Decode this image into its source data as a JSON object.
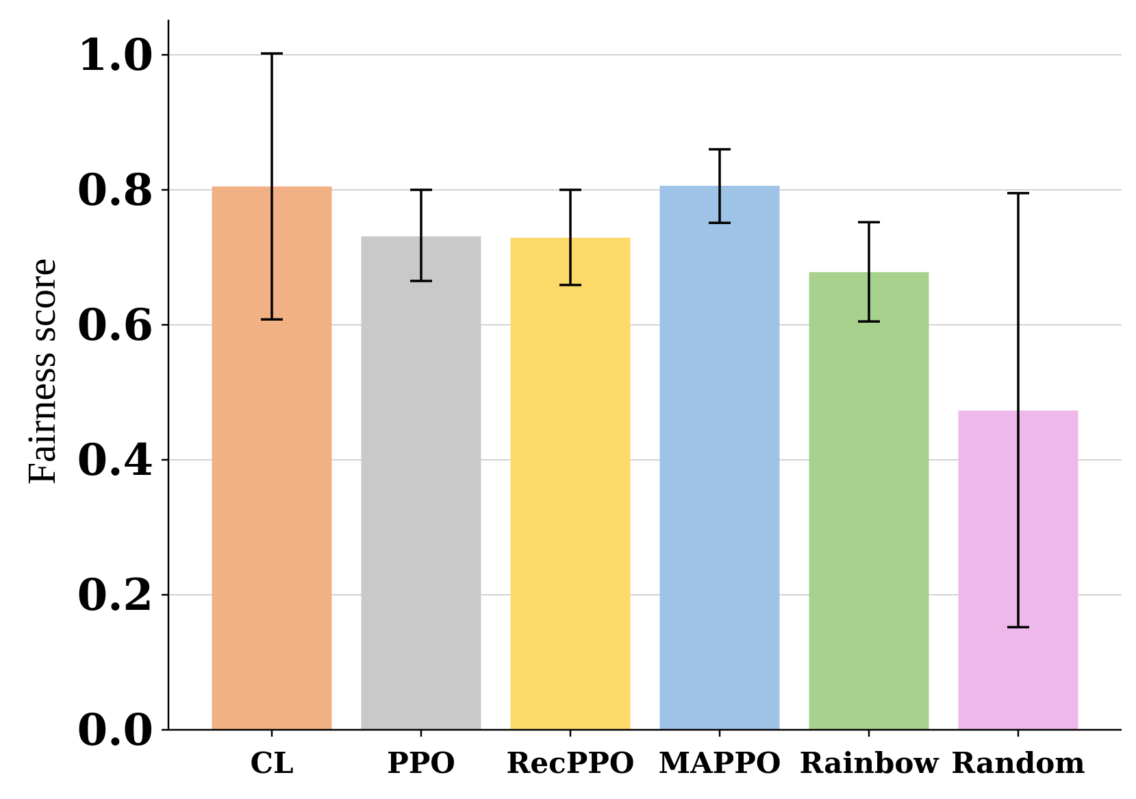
{
  "chart_data": {
    "type": "bar",
    "title": "",
    "xlabel": "",
    "ylabel": "Fairness score",
    "categories": [
      "CL",
      "PPO",
      "RecPPO",
      "MAPPO",
      "Rainbow",
      "Random"
    ],
    "values": [
      0.805,
      0.731,
      0.729,
      0.806,
      0.678,
      0.473
    ],
    "error_low": [
      0.608,
      0.665,
      0.659,
      0.751,
      0.605,
      0.152
    ],
    "error_high": [
      1.002,
      0.8,
      0.8,
      0.86,
      0.752,
      0.795
    ],
    "colors": [
      "#F2B185",
      "#C9C9C9",
      "#FDD96A",
      "#9EC3E6",
      "#A8D18D",
      "#EFB8EB"
    ],
    "ylim": [
      0,
      1.05
    ],
    "yticks": [
      "0.0",
      "0.2",
      "0.4",
      "0.6",
      "0.8",
      "1.0"
    ],
    "grid": "horizontal"
  }
}
